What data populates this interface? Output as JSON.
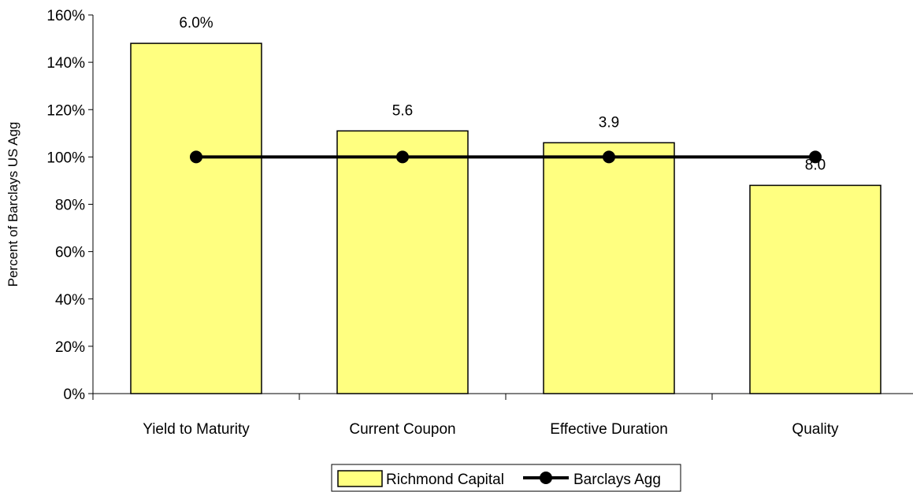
{
  "chart_data": {
    "type": "bar",
    "title": "",
    "xlabel": "",
    "ylabel": "Percent of Barclays US Agg",
    "ylim": [
      0,
      160
    ],
    "yticks": [
      0,
      20,
      40,
      60,
      80,
      100,
      120,
      140,
      160
    ],
    "ytick_labels": [
      "0%",
      "20%",
      "40%",
      "60%",
      "80%",
      "100%",
      "120%",
      "140%",
      "160%"
    ],
    "categories": [
      "Yield to Maturity",
      "Current Coupon",
      "Effective Duration",
      "Quality"
    ],
    "series": [
      {
        "name": "Richmond Capital",
        "kind": "bar",
        "color": "#FFFF80",
        "values": [
          148,
          111,
          106,
          88
        ],
        "data_labels": [
          "6.0%",
          "5.6",
          "3.9",
          "8.0"
        ]
      },
      {
        "name": "Barclays Agg",
        "kind": "line",
        "color": "#000000",
        "values": [
          100,
          100,
          100,
          100
        ]
      }
    ],
    "grid": false,
    "legend_position": "bottom"
  }
}
